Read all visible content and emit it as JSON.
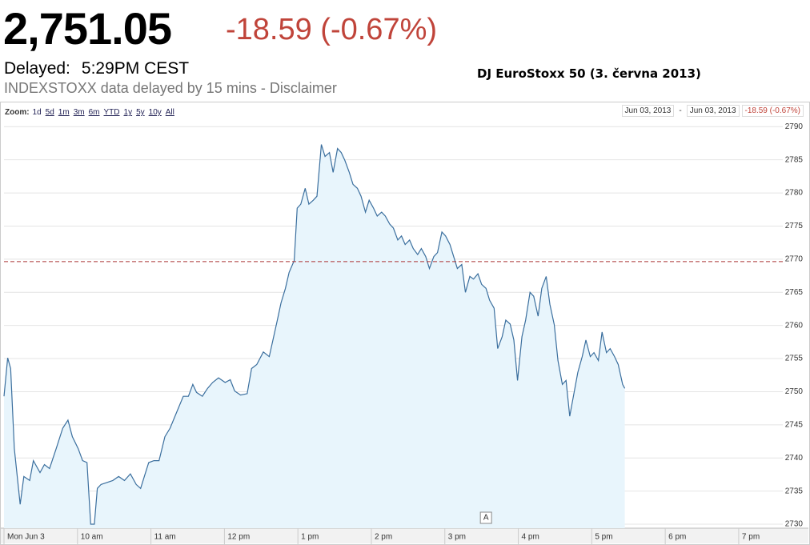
{
  "header": {
    "price": "2,751.05",
    "change": "-18.59 (-0.67%)",
    "delayed_label": "Delayed:",
    "delayed_time": "5:29PM CEST",
    "source_note": "INDEXSTOXX data delayed by 15 mins - Disclaimer"
  },
  "toolbar": {
    "zoom_label": "Zoom:",
    "zoom_options": [
      "1d",
      "5d",
      "1m",
      "3m",
      "6m",
      "YTD",
      "1y",
      "5y",
      "10y",
      "All"
    ],
    "range_start": "Jun 03, 2013",
    "range_separator": "-",
    "range_end": "Jun 03, 2013",
    "range_change": "-18.59 (-0.67%)"
  },
  "chart_data": {
    "type": "area",
    "title": "DJ EuroStoxx 50 (3. června 2013)",
    "x": [
      9.0,
      9.05,
      9.09,
      9.14,
      9.22,
      9.27,
      9.35,
      9.4,
      9.49,
      9.55,
      9.62,
      9.71,
      9.8,
      9.87,
      9.93,
      10.01,
      10.07,
      10.13,
      10.18,
      10.23,
      10.27,
      10.32,
      10.4,
      10.48,
      10.56,
      10.64,
      10.72,
      10.8,
      10.86,
      10.91,
      10.97,
      11.04,
      11.11,
      11.19,
      11.26,
      11.35,
      11.44,
      11.51,
      11.57,
      11.62,
      11.7,
      11.77,
      11.84,
      11.92,
      12.01,
      12.08,
      12.14,
      12.22,
      12.31,
      12.37,
      12.44,
      12.53,
      12.61,
      12.66,
      12.72,
      12.77,
      12.83,
      12.88,
      12.95,
      12.99,
      13.04,
      13.1,
      13.15,
      13.21,
      13.26,
      13.32,
      13.37,
      13.43,
      13.48,
      13.54,
      13.59,
      13.64,
      13.7,
      13.75,
      13.81,
      13.86,
      13.92,
      13.97,
      14.03,
      14.08,
      14.14,
      14.19,
      14.25,
      14.3,
      14.36,
      14.41,
      14.46,
      14.52,
      14.57,
      14.63,
      14.68,
      14.74,
      14.79,
      14.85,
      14.9,
      14.96,
      15.01,
      15.07,
      15.12,
      15.17,
      15.23,
      15.28,
      15.34,
      15.39,
      15.45,
      15.5,
      15.56,
      15.61,
      15.67,
      15.72,
      15.78,
      15.83,
      15.89,
      15.94,
      15.99,
      16.05,
      16.1,
      16.16,
      16.21,
      16.27,
      16.32,
      16.38,
      16.43,
      16.49,
      16.54,
      16.6,
      16.65,
      16.7,
      16.76,
      16.81,
      16.87,
      16.92,
      16.98,
      17.03,
      17.09,
      17.14,
      17.2,
      17.25,
      17.31,
      17.36,
      17.42,
      17.45
    ],
    "values": [
      2749.3,
      2755.1,
      2753.5,
      2741.4,
      2733.0,
      2737.2,
      2736.6,
      2739.6,
      2737.8,
      2739.0,
      2738.4,
      2741.4,
      2744.5,
      2745.7,
      2743.2,
      2741.4,
      2739.6,
      2739.3,
      2730.0,
      2730.0,
      2735.4,
      2736.0,
      2736.3,
      2736.6,
      2737.2,
      2736.6,
      2737.6,
      2736.0,
      2735.4,
      2737.2,
      2739.3,
      2739.6,
      2739.6,
      2743.2,
      2744.5,
      2746.9,
      2749.3,
      2749.3,
      2751.1,
      2749.9,
      2749.3,
      2750.5,
      2751.4,
      2752.1,
      2751.4,
      2751.8,
      2750.1,
      2749.5,
      2749.7,
      2753.5,
      2754.1,
      2756.0,
      2755.3,
      2757.8,
      2760.8,
      2763.4,
      2765.6,
      2768.0,
      2769.8,
      2777.7,
      2778.3,
      2780.7,
      2778.3,
      2778.9,
      2779.5,
      2787.3,
      2785.5,
      2786.1,
      2783.1,
      2786.7,
      2786.1,
      2784.9,
      2783.1,
      2781.3,
      2780.7,
      2779.5,
      2777.1,
      2778.9,
      2777.7,
      2776.5,
      2777.1,
      2776.5,
      2775.3,
      2774.7,
      2772.9,
      2773.5,
      2772.2,
      2772.9,
      2771.6,
      2770.7,
      2771.6,
      2770.4,
      2768.6,
      2770.4,
      2771.0,
      2774.1,
      2773.5,
      2772.2,
      2770.4,
      2768.6,
      2769.2,
      2765.0,
      2767.4,
      2767.0,
      2767.8,
      2766.2,
      2765.6,
      2763.8,
      2762.6,
      2756.5,
      2758.3,
      2760.8,
      2760.2,
      2757.8,
      2751.7,
      2758.3,
      2760.8,
      2765.0,
      2764.4,
      2761.4,
      2765.6,
      2767.4,
      2763.2,
      2760.1,
      2754.7,
      2751.1,
      2751.7,
      2746.3,
      2749.9,
      2752.9,
      2755.3,
      2757.8,
      2755.3,
      2755.9,
      2754.7,
      2759.0,
      2755.9,
      2756.5,
      2755.3,
      2754.1,
      2751.1,
      2750.5
    ],
    "color": "#3b6f9e",
    "fill_color": "#e8f5fc",
    "reference_line": 2769.64,
    "reference_color": "#a33",
    "annotation": {
      "x": 15.56,
      "label": "A"
    },
    "xlim": [
      9,
      19.6
    ],
    "xticks": [
      {
        "value": 9,
        "label": "Mon Jun 3"
      },
      {
        "value": 10,
        "label": "10 am"
      },
      {
        "value": 11,
        "label": "11 am"
      },
      {
        "value": 12,
        "label": "12 pm"
      },
      {
        "value": 13,
        "label": "1 pm"
      },
      {
        "value": 14,
        "label": "2 pm"
      },
      {
        "value": 15,
        "label": "3 pm"
      },
      {
        "value": 16,
        "label": "4 pm"
      },
      {
        "value": 17,
        "label": "5 pm"
      },
      {
        "value": 18,
        "label": "6 pm"
      },
      {
        "value": 19,
        "label": "7 pm"
      }
    ],
    "ylim": [
      2729.4,
      2791
    ],
    "yticks": [
      2730,
      2735,
      2740,
      2745,
      2750,
      2755,
      2760,
      2765,
      2770,
      2775,
      2780,
      2785,
      2790
    ],
    "grid": true
  }
}
